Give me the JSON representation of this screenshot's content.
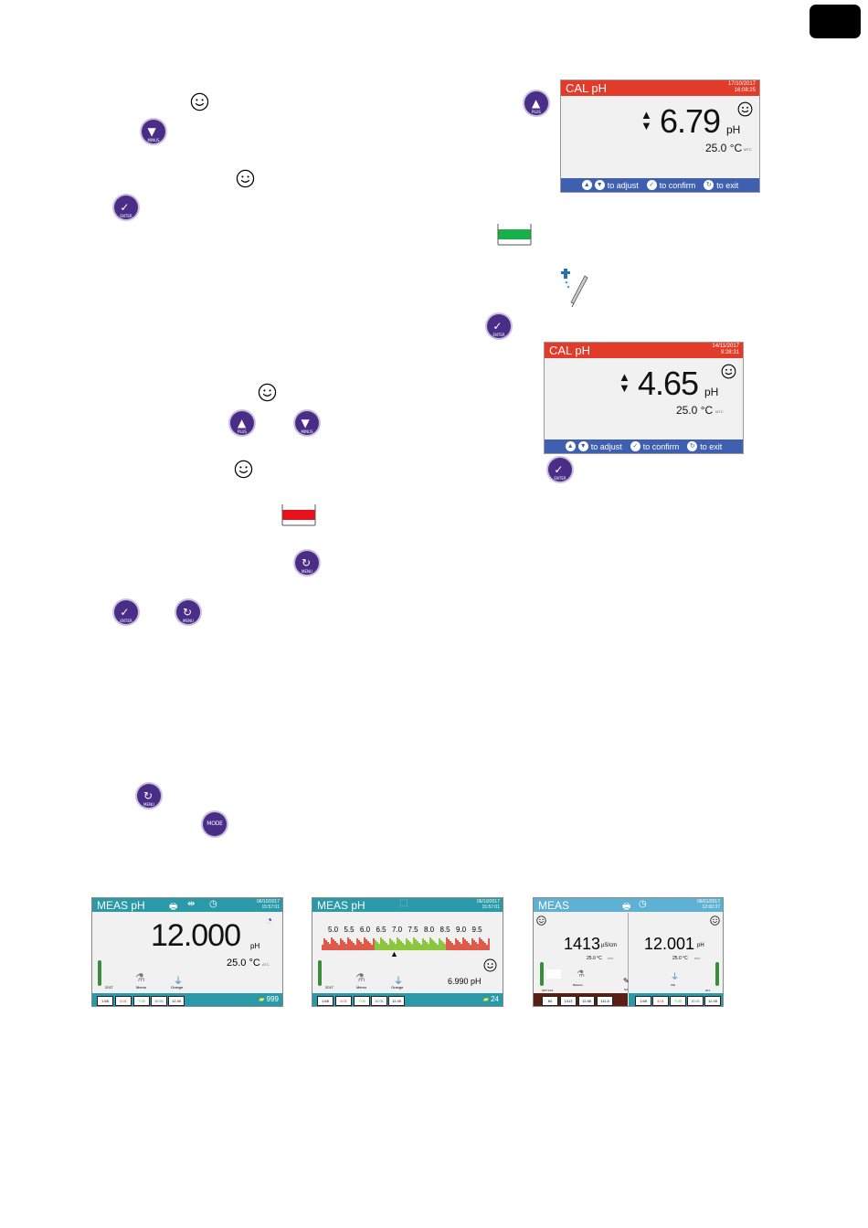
{
  "section_tab": {
    "color": "#000000"
  },
  "buttons": {
    "up_label": "▲",
    "up_sub": "PLUS",
    "down_label": "▼",
    "down_sub": "MINUS",
    "enter_label": "✓",
    "enter_sub": "ENTER",
    "menu_label": "↻",
    "menu_sub": "MENU",
    "mode_label": "MODE"
  },
  "cal_screen_1": {
    "title": "CAL pH",
    "date": "17/10/2017",
    "time": "16:08:25",
    "value": "6.79",
    "unit": "pH",
    "temp": "25.0 °C",
    "atc": "MTC",
    "footer": {
      "adjust": "to adjust",
      "confirm": "to confirm",
      "exit": "to exit"
    }
  },
  "cal_screen_2": {
    "title": "CAL pH",
    "date": "14/11/2017",
    "time": "9:28:31",
    "value": "4.65",
    "unit": "pH",
    "temp": "25.0 °C",
    "atc": "MTC",
    "footer": {
      "adjust": "to adjust",
      "confirm": "to confirm",
      "exit": "to exit"
    }
  },
  "meas_screen_1": {
    "title": "MEAS pH",
    "date": "06/10/2017",
    "time": "15:57:01",
    "value": "12.000",
    "unit": "pH",
    "temp": "25.0 °C",
    "atc": "ATC",
    "chips": [
      "1.68",
      "4.01",
      "7.00",
      "10.01",
      "12.45"
    ],
    "labels": {
      "probe": "201T",
      "stir": "Memo",
      "sample": "Orange"
    },
    "count": "999"
  },
  "meas_screen_2": {
    "title": "MEAS  pH",
    "date": "06/10/2017",
    "time": "15:57:01",
    "scale": [
      "5.0",
      "5.5",
      "6.0",
      "6.5",
      "7.0",
      "7.5",
      "8.0",
      "8.5",
      "9.0",
      "9.5"
    ],
    "reading": "6.990 pH",
    "chips": [
      "1.68",
      "4.01",
      "7.00",
      "10.01",
      "12.45"
    ],
    "labels": {
      "probe": "201T",
      "stir": "Memo",
      "sample": "Orange"
    },
    "count": "24"
  },
  "meas_screen_3": {
    "title": "MEAS",
    "date": "06/01/2017",
    "time": "12:00:37",
    "left_value": "1413",
    "left_unit": "µS/cm",
    "left_temp": "25.0 °C",
    "left_atc": "MTC",
    "right_value": "12.001",
    "right_unit": "pH",
    "right_temp": "25.0 °C",
    "right_atc": "MTC",
    "labels": {
      "left_probe": "SPT 01/1",
      "left_stir": "Balance",
      "right_note": "Set",
      "right_sample": "ICE",
      "right_probe": "201"
    },
    "left_chips": [
      "84",
      "1413",
      "12.88",
      "111.8"
    ],
    "right_chips": [
      "1.68",
      "4.01",
      "7.00",
      "10.01",
      "12.45"
    ]
  },
  "colors": {
    "accent_purple": "#4a2d86",
    "cal_header": "#e23b2a",
    "cal_footer": "#3f5fb0",
    "meas_teal": "#2a9aa8",
    "buffer_green": "#18b04a",
    "buffer_red": "#e8101a"
  }
}
